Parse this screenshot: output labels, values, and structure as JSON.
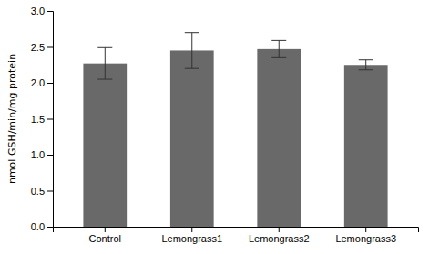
{
  "chart_data": {
    "type": "bar",
    "categories": [
      "Control",
      "Lemongrass1",
      "Lemongrass2",
      "Lemongrass3"
    ],
    "values": [
      2.27,
      2.45,
      2.47,
      2.25
    ],
    "errors": [
      0.22,
      0.25,
      0.12,
      0.07
    ],
    "color": "#696969",
    "ylabel": "nmol GSH/min/mg protein",
    "ylim": [
      0.0,
      3.0
    ],
    "yticks": [
      {
        "value": 0,
        "label": "0.0"
      },
      0.5,
      {
        "value": 1,
        "label": "1.0"
      },
      1.5,
      {
        "value": 2,
        "label": "2.0"
      },
      2.5,
      {
        "value": 3,
        "label": "3.0"
      }
    ],
    "grid": false
  }
}
